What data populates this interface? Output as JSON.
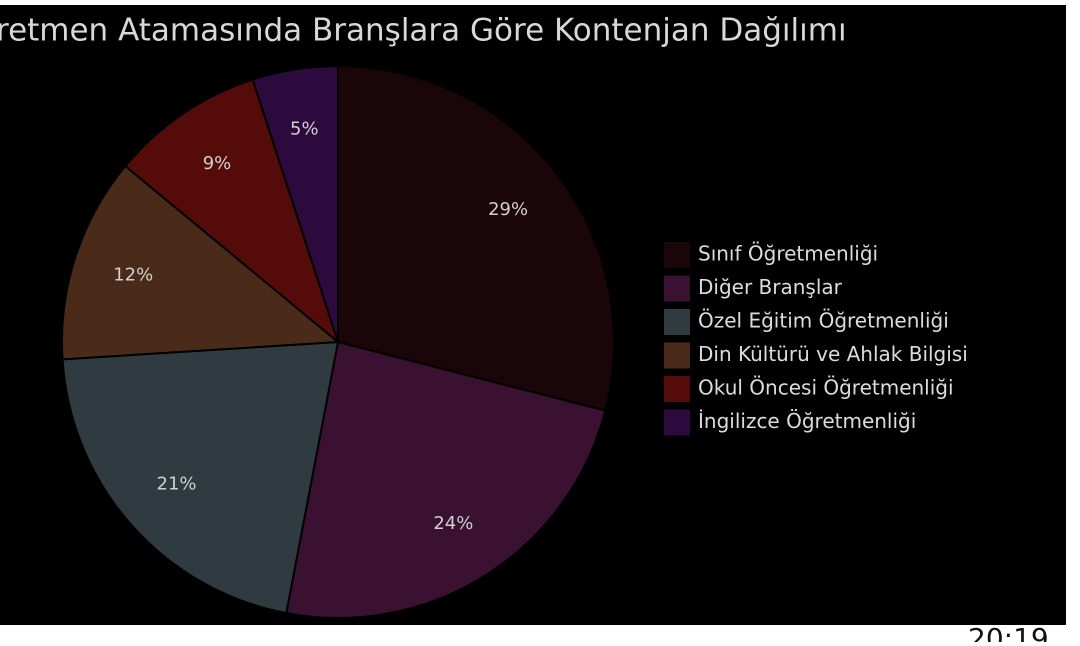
{
  "chart_data": {
    "type": "pie",
    "title": "retmen Atamasında Branşlara Göre Kontenjan Dağılımı",
    "categories": [
      "Sınıf Öğretmenliği",
      "Diğer Branşlar",
      "Özel Eğitim Öğretmenliği",
      "Din Kültürü ve Ahlak Bilgisi",
      "Okul Öncesi Öğretmenliği",
      "İngilizce Öğretmenliği"
    ],
    "values": [
      29,
      24,
      21,
      12,
      9,
      5
    ],
    "value_labels": [
      "29%",
      "24%",
      "21%",
      "12%",
      "9%",
      "5%"
    ],
    "colors": [
      "#1a0509",
      "#3a1130",
      "#2f3b41",
      "#4a2b1a",
      "#560b0b",
      "#2d0a3e"
    ]
  },
  "timestamp": "20:19"
}
